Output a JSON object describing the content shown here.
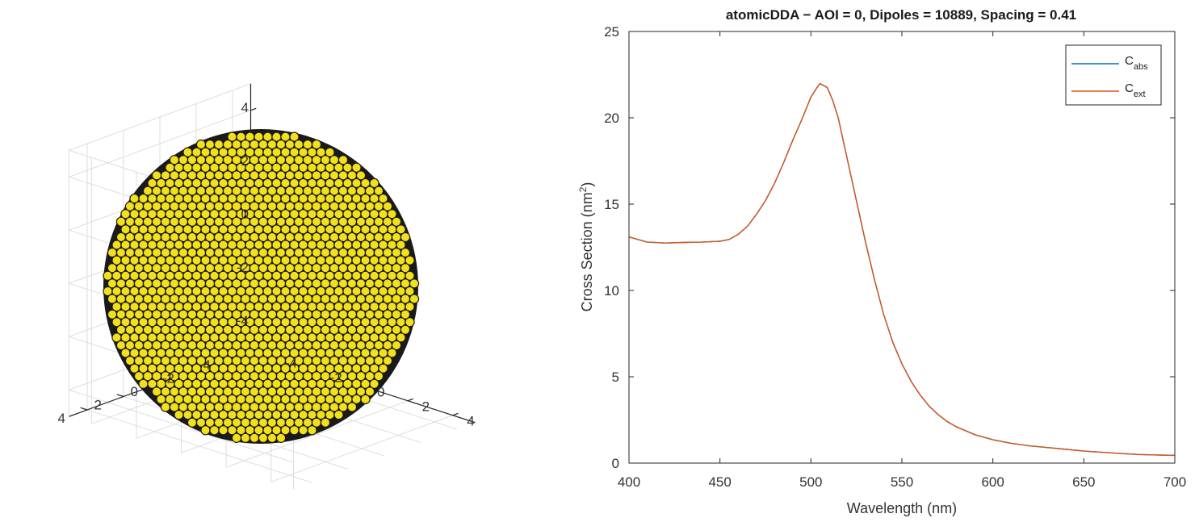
{
  "chart_data": [
    {
      "type": "scatter3d",
      "description_kind": "dipole-lattice-sphere",
      "marker_color": "#f2e01d",
      "marker_edge_color": "#1a1a1a",
      "xlim": [
        -5,
        5
      ],
      "ylim": [
        -5,
        5
      ],
      "zlim": [
        -5,
        5
      ],
      "x_ticks": [
        "-4",
        "-2",
        "0",
        "2",
        "4"
      ],
      "y_ticks": [
        "4",
        "2",
        "0",
        "-2",
        "-4"
      ],
      "z_ticks": [
        "4",
        "2",
        "0",
        "-2",
        "-4"
      ],
      "grid": true,
      "sphere_radius": 4.6
    },
    {
      "type": "line",
      "title": "atomicDDA − AOI = 0, Dipoles = 10889, Spacing = 0.41",
      "xlabel": "Wavelength (nm)",
      "ylabel_main": "Cross Section (nm",
      "ylabel_sup": "2",
      "ylabel_tail": ")",
      "xlim": [
        400,
        700
      ],
      "ylim": [
        0,
        25
      ],
      "x_ticks": [
        "400",
        "450",
        "500",
        "550",
        "600",
        "650",
        "700"
      ],
      "y_ticks": [
        "0",
        "5",
        "10",
        "15",
        "20",
        "25"
      ],
      "grid": false,
      "legend_placement": "top-right",
      "series": [
        {
          "name": "C",
          "sub": "abs",
          "color": "#0072bd",
          "x": [
            400,
            410,
            420,
            430,
            440,
            450,
            455,
            460,
            465,
            470,
            475,
            480,
            485,
            490,
            495,
            500,
            503,
            505,
            509,
            512,
            515,
            520,
            525,
            530,
            535,
            540,
            545,
            550,
            555,
            560,
            565,
            570,
            575,
            580,
            590,
            600,
            610,
            620,
            630,
            640,
            650,
            660,
            670,
            680,
            690,
            700
          ],
          "y": [
            13.1,
            12.8,
            12.75,
            12.78,
            12.8,
            12.85,
            12.95,
            13.25,
            13.7,
            14.4,
            15.2,
            16.2,
            17.4,
            18.7,
            19.9,
            21.2,
            21.7,
            21.98,
            21.75,
            21.0,
            20.0,
            17.6,
            15.2,
            12.8,
            10.6,
            8.6,
            7.0,
            5.75,
            4.75,
            3.95,
            3.3,
            2.8,
            2.4,
            2.1,
            1.65,
            1.35,
            1.15,
            1.0,
            0.9,
            0.8,
            0.7,
            0.63,
            0.56,
            0.5,
            0.47,
            0.45
          ]
        },
        {
          "name": "C",
          "sub": "ext",
          "color": "#d95319",
          "x": [
            400,
            410,
            420,
            430,
            440,
            450,
            455,
            460,
            465,
            470,
            475,
            480,
            485,
            490,
            495,
            500,
            503,
            505,
            509,
            512,
            515,
            520,
            525,
            530,
            535,
            540,
            545,
            550,
            555,
            560,
            565,
            570,
            575,
            580,
            590,
            600,
            610,
            620,
            630,
            640,
            650,
            660,
            670,
            680,
            690,
            700
          ],
          "y": [
            13.1,
            12.8,
            12.75,
            12.78,
            12.8,
            12.85,
            12.95,
            13.25,
            13.7,
            14.4,
            15.2,
            16.2,
            17.4,
            18.7,
            19.9,
            21.2,
            21.7,
            21.98,
            21.75,
            21.0,
            20.0,
            17.6,
            15.2,
            12.8,
            10.6,
            8.6,
            7.0,
            5.75,
            4.75,
            3.95,
            3.3,
            2.8,
            2.4,
            2.1,
            1.65,
            1.35,
            1.15,
            1.0,
            0.9,
            0.8,
            0.7,
            0.63,
            0.56,
            0.5,
            0.47,
            0.45
          ]
        }
      ]
    }
  ]
}
